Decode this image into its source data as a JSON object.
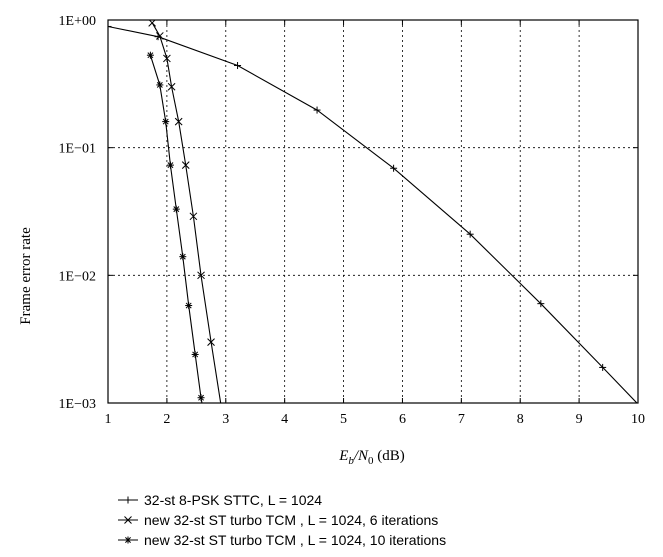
{
  "chart_data": {
    "type": "line",
    "title": "",
    "xlabel": {
      "main": "E",
      "sub": "b",
      "slash": "/N",
      "sub2": "0",
      "unit": " (dB)"
    },
    "ylabel": "Frame error rate",
    "xlim": [
      1,
      10
    ],
    "ylim": [
      0.001,
      1
    ],
    "y_scale": "log",
    "grid": true,
    "legend_position": "bottom",
    "x_ticks": [
      "1",
      "2",
      "3",
      "4",
      "5",
      "6",
      "7",
      "8",
      "9",
      "10"
    ],
    "y_ticks": [
      "1E−03",
      "1E−02",
      "1E−01",
      "1E+00"
    ],
    "series": [
      {
        "name": "32-st 8-PSK STTC, L = 1024",
        "marker": "plus",
        "x": [
          1.0,
          1.85,
          3.2,
          4.55,
          5.85,
          7.15,
          8.35,
          9.4,
          10.0
        ],
        "y": [
          0.89,
          0.74,
          0.44,
          0.197,
          0.069,
          0.021,
          0.006,
          0.0019,
          0.00098
        ]
      },
      {
        "name": "new 32-st ST turbo TCM , L = 1024, 6 iterations",
        "marker": "cross",
        "x": [
          1.75,
          1.88,
          2.0,
          2.08,
          2.2,
          2.32,
          2.45,
          2.58,
          2.75,
          2.92
        ],
        "y": [
          0.95,
          0.75,
          0.5,
          0.3,
          0.16,
          0.073,
          0.029,
          0.01,
          0.003,
          0.00095
        ]
      },
      {
        "name": "new 32-st ST turbo TCM , L = 1024, 10 iterations",
        "marker": "asterisk",
        "x": [
          1.72,
          1.88,
          1.98,
          2.06,
          2.16,
          2.27,
          2.37,
          2.48,
          2.58,
          2.68
        ],
        "y": [
          0.53,
          0.31,
          0.16,
          0.073,
          0.033,
          0.014,
          0.0058,
          0.0024,
          0.0011,
          0.0006
        ]
      }
    ]
  }
}
